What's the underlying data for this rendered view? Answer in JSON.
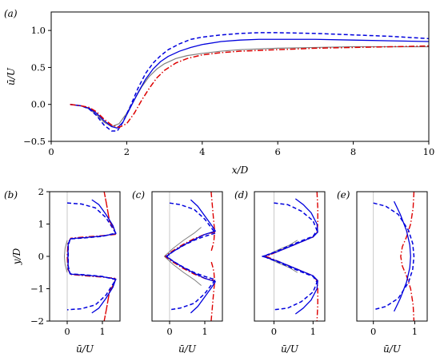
{
  "chart_data": [
    {
      "id": "a",
      "panel_label": "(a)",
      "type": "line",
      "xlabel": "x/D",
      "ylabel": "ū/U",
      "xlim": [
        0,
        10
      ],
      "ylim": [
        -0.5,
        1.25
      ],
      "xticks": [
        "0",
        "2",
        "4",
        "6",
        "8",
        "10"
      ],
      "yticks": [
        "−0.5",
        "0.0",
        "0.5",
        "1.0"
      ],
      "series": [
        {
          "color": "#808080",
          "dash": "solid",
          "width": 1.2,
          "x": [
            0.5,
            0.8,
            1.0,
            1.2,
            1.4,
            1.6,
            1.8,
            2.0,
            2.2,
            2.4,
            2.6,
            2.8,
            3.0,
            3.3,
            3.6,
            4.0,
            4.5,
            5.0,
            6.0,
            7.0,
            8.0,
            9.0,
            10.0
          ],
          "y": [
            0.0,
            -0.02,
            -0.06,
            -0.14,
            -0.24,
            -0.3,
            -0.26,
            -0.12,
            0.06,
            0.24,
            0.38,
            0.48,
            0.55,
            0.62,
            0.66,
            0.69,
            0.72,
            0.74,
            0.76,
            0.77,
            0.78,
            0.78,
            0.78
          ]
        },
        {
          "color": "#0000dd",
          "dash": "solid",
          "width": 1.3,
          "x": [
            0.5,
            0.8,
            1.0,
            1.2,
            1.4,
            1.6,
            1.75,
            1.9,
            2.1,
            2.3,
            2.5,
            2.7,
            2.9,
            3.1,
            3.4,
            3.7,
            4.0,
            4.5,
            5.0,
            5.5,
            6.0,
            7.0,
            8.0,
            9.0,
            10.0
          ],
          "y": [
            0.0,
            -0.02,
            -0.05,
            -0.12,
            -0.22,
            -0.3,
            -0.32,
            -0.24,
            -0.04,
            0.16,
            0.34,
            0.48,
            0.58,
            0.65,
            0.72,
            0.77,
            0.81,
            0.85,
            0.87,
            0.88,
            0.88,
            0.88,
            0.87,
            0.86,
            0.85
          ]
        },
        {
          "color": "#0000dd",
          "dash": "dashed",
          "width": 1.5,
          "x": [
            0.5,
            0.8,
            1.0,
            1.2,
            1.4,
            1.6,
            1.75,
            1.9,
            2.1,
            2.3,
            2.5,
            2.7,
            2.9,
            3.1,
            3.4,
            3.7,
            4.0,
            4.5,
            5.0,
            5.5,
            6.0,
            7.0,
            8.0,
            9.0,
            10.0
          ],
          "y": [
            0.0,
            -0.02,
            -0.06,
            -0.15,
            -0.28,
            -0.36,
            -0.36,
            -0.24,
            -0.02,
            0.22,
            0.42,
            0.56,
            0.66,
            0.74,
            0.82,
            0.88,
            0.91,
            0.94,
            0.96,
            0.97,
            0.97,
            0.96,
            0.94,
            0.92,
            0.89
          ]
        },
        {
          "color": "#dd0000",
          "dash": "dashdot",
          "width": 1.5,
          "x": [
            0.5,
            0.8,
            1.0,
            1.2,
            1.4,
            1.6,
            1.8,
            2.0,
            2.2,
            2.4,
            2.6,
            2.8,
            3.0,
            3.3,
            3.6,
            4.0,
            4.5,
            5.0,
            6.0,
            7.0,
            8.0,
            9.0,
            10.0
          ],
          "y": [
            0.0,
            -0.02,
            -0.04,
            -0.1,
            -0.2,
            -0.28,
            -0.31,
            -0.26,
            -0.12,
            0.06,
            0.22,
            0.36,
            0.46,
            0.56,
            0.62,
            0.67,
            0.7,
            0.72,
            0.74,
            0.76,
            0.77,
            0.78,
            0.79
          ]
        }
      ]
    },
    {
      "id": "b",
      "panel_label": "(b)",
      "type": "line",
      "xlabel": "ū/U",
      "ylabel": "y/D",
      "xlim": [
        -0.5,
        1.5
      ],
      "ylim": [
        -2,
        2
      ],
      "xticks": [
        {
          "v": 0,
          "t": "0"
        },
        {
          "v": 1,
          "t": "1"
        }
      ],
      "yticks": [
        "−2",
        "−1",
        "0",
        "1",
        "2"
      ],
      "zero_line_x": 0,
      "series": [
        {
          "color": "#808080",
          "dash": "solid",
          "width": 1.0,
          "x": [
            0.0,
            -0.06,
            -0.08,
            -0.06,
            0.0
          ],
          "y": [
            0.5,
            0.25,
            0.0,
            -0.25,
            -0.5
          ]
        },
        {
          "color": "#dd0000",
          "dash": "dashdot",
          "width": 1.4,
          "x": [
            1.05,
            1.12,
            1.2,
            1.3,
            1.38,
            1.3,
            1.2,
            1.12,
            1.05
          ],
          "y": [
            2.0,
            1.6,
            1.1,
            0.9,
            0.7,
            0.9,
            1.1,
            1.6,
            2.0
          ]
        },
        {
          "color": "#dd0000",
          "dash": "dashdot",
          "width": 1.4,
          "x": [
            1.05,
            1.12,
            1.2,
            1.3,
            1.38,
            1.3,
            1.2,
            1.12,
            1.05
          ],
          "y": [
            -2.0,
            -1.6,
            -1.1,
            -0.9,
            -0.7,
            -0.9,
            -1.1,
            -1.6,
            -2.0
          ]
        },
        {
          "color": "#dd0000",
          "dash": "dashdot",
          "width": 1.4,
          "x": [
            1.38,
            1.0,
            0.5,
            0.1,
            0.02,
            0.0,
            0.02,
            0.1,
            0.5,
            1.0,
            1.38
          ],
          "y": [
            0.68,
            0.64,
            0.6,
            0.56,
            0.4,
            0.0,
            -0.4,
            -0.56,
            -0.6,
            -0.64,
            -0.68
          ]
        },
        {
          "color": "#0000dd",
          "dash": "solid",
          "width": 1.3,
          "x": [
            0.7,
            0.9,
            1.1,
            1.3,
            1.38,
            1.0,
            0.5,
            0.1,
            0.03,
            0.02,
            0.03,
            0.1,
            0.5,
            1.0,
            1.38,
            1.3,
            1.1,
            0.9,
            0.7
          ],
          "y": [
            1.75,
            1.6,
            1.3,
            0.95,
            0.7,
            0.63,
            0.58,
            0.55,
            0.4,
            0.0,
            -0.4,
            -0.55,
            -0.58,
            -0.63,
            -0.7,
            -0.95,
            -1.3,
            -1.6,
            -1.75
          ]
        },
        {
          "color": "#0000dd",
          "dash": "dashed",
          "width": 1.5,
          "x": [
            0.0,
            0.4,
            0.8,
            1.1,
            1.38,
            1.0,
            0.5,
            0.08,
            0.03,
            0.03,
            0.08,
            0.5,
            1.0,
            1.38,
            1.1,
            0.8,
            0.4,
            0.0
          ],
          "y": [
            1.65,
            1.62,
            1.5,
            1.2,
            0.72,
            0.62,
            0.57,
            0.54,
            0.3,
            -0.3,
            -0.54,
            -0.57,
            -0.62,
            -0.72,
            -1.2,
            -1.5,
            -1.62,
            -1.65
          ]
        }
      ]
    },
    {
      "id": "c",
      "panel_label": "(c)",
      "type": "line",
      "xlabel": "ū/U",
      "ylabel": "",
      "xlim": [
        -0.5,
        1.5
      ],
      "ylim": [
        -2,
        2
      ],
      "xticks": [
        {
          "v": 0,
          "t": "0"
        },
        {
          "v": 1,
          "t": "1"
        }
      ],
      "yticks": [],
      "zero_line_x": 0,
      "series": [
        {
          "color": "#808080",
          "dash": "solid",
          "width": 1.0,
          "x": [
            0.9,
            0.7,
            0.4,
            0.1,
            -0.05,
            -0.15,
            -0.05,
            0.1,
            0.4,
            0.7,
            0.9
          ],
          "y": [
            0.9,
            0.72,
            0.5,
            0.25,
            0.1,
            0.0,
            -0.1,
            -0.25,
            -0.5,
            -0.72,
            -0.9
          ]
        },
        {
          "color": "#dd0000",
          "dash": "dashdot",
          "width": 1.4,
          "x": [
            1.18,
            1.22,
            1.26,
            1.28,
            1.26,
            1.22,
            1.18
          ],
          "y": [
            2.0,
            1.5,
            1.0,
            0.8,
            0.5,
            0.3,
            0.15
          ]
        },
        {
          "color": "#dd0000",
          "dash": "dashdot",
          "width": 1.4,
          "x": [
            1.18,
            1.22,
            1.26,
            1.28,
            1.26,
            1.22,
            1.18
          ],
          "y": [
            -2.0,
            -1.5,
            -1.0,
            -0.8,
            -0.5,
            -0.3,
            -0.15
          ]
        },
        {
          "color": "#dd0000",
          "dash": "dashdot",
          "width": 1.4,
          "x": [
            1.28,
            1.0,
            0.7,
            0.4,
            0.1,
            -0.05,
            -0.12,
            -0.05,
            0.1,
            0.4,
            0.7,
            1.0,
            1.28
          ],
          "y": [
            0.75,
            0.68,
            0.55,
            0.38,
            0.18,
            0.06,
            0.0,
            -0.06,
            -0.18,
            -0.38,
            -0.55,
            -0.68,
            -0.75
          ]
        },
        {
          "color": "#0000dd",
          "dash": "solid",
          "width": 1.3,
          "x": [
            0.6,
            0.8,
            1.0,
            1.2,
            1.3,
            1.0,
            0.7,
            0.4,
            0.1,
            -0.1,
            0.1,
            0.4,
            0.7,
            1.0,
            1.3,
            1.2,
            1.0,
            0.8,
            0.6
          ],
          "y": [
            1.75,
            1.55,
            1.25,
            0.95,
            0.78,
            0.68,
            0.52,
            0.35,
            0.15,
            0.0,
            -0.15,
            -0.35,
            -0.52,
            -0.68,
            -0.78,
            -0.95,
            -1.25,
            -1.55,
            -1.75
          ]
        },
        {
          "color": "#0000dd",
          "dash": "dashed",
          "width": 1.5,
          "x": [
            0.0,
            0.3,
            0.7,
            1.0,
            1.3,
            1.0,
            0.7,
            0.4,
            0.1,
            -0.08,
            0.1,
            0.4,
            0.7,
            1.0,
            1.3,
            1.0,
            0.7,
            0.3,
            0.0
          ],
          "y": [
            1.65,
            1.6,
            1.45,
            1.15,
            0.72,
            0.62,
            0.5,
            0.34,
            0.15,
            0.0,
            -0.15,
            -0.34,
            -0.5,
            -0.62,
            -0.72,
            -1.15,
            -1.45,
            -1.6,
            -1.65
          ]
        }
      ]
    },
    {
      "id": "d",
      "panel_label": "(d)",
      "type": "line",
      "xlabel": "ū/U",
      "ylabel": "",
      "xlim": [
        -0.5,
        1.3
      ],
      "ylim": [
        -2,
        2
      ],
      "xticks": [
        {
          "v": 0,
          "t": "0"
        },
        {
          "v": 1,
          "t": "1"
        }
      ],
      "yticks": [],
      "zero_line_x": 0,
      "series": [
        {
          "color": "#808080",
          "dash": "solid",
          "width": 1.0,
          "x": [
            0.6,
            0.4,
            0.1,
            -0.1,
            -0.25,
            -0.1,
            0.1,
            0.4,
            0.6
          ],
          "y": [
            0.5,
            0.35,
            0.2,
            0.08,
            0.0,
            -0.08,
            -0.2,
            -0.35,
            -0.5
          ]
        },
        {
          "color": "#dd0000",
          "dash": "dashdot",
          "width": 1.4,
          "x": [
            1.1,
            1.12,
            1.12,
            1.1,
            1.0,
            0.7,
            0.4,
            0.1,
            -0.1,
            -0.2,
            -0.1,
            0.1,
            0.4,
            0.7,
            1.0,
            1.1,
            1.12,
            1.12,
            1.1
          ],
          "y": [
            2.0,
            1.5,
            1.0,
            0.75,
            0.6,
            0.45,
            0.3,
            0.15,
            0.05,
            0.0,
            -0.05,
            -0.15,
            -0.3,
            -0.45,
            -0.6,
            -0.75,
            -1.0,
            -1.5,
            -2.0
          ]
        },
        {
          "color": "#0000dd",
          "dash": "solid",
          "width": 1.3,
          "x": [
            0.55,
            0.75,
            0.95,
            1.1,
            1.12,
            1.0,
            0.7,
            0.4,
            0.1,
            -0.15,
            -0.3,
            -0.15,
            0.1,
            0.4,
            0.7,
            1.0,
            1.12,
            1.1,
            0.95,
            0.75,
            0.55
          ],
          "y": [
            1.78,
            1.6,
            1.35,
            1.0,
            0.75,
            0.6,
            0.45,
            0.3,
            0.15,
            0.05,
            0.0,
            -0.05,
            -0.15,
            -0.3,
            -0.45,
            -0.6,
            -0.75,
            -1.0,
            -1.35,
            -1.6,
            -1.78
          ]
        },
        {
          "color": "#0000dd",
          "dash": "dashed",
          "width": 1.5,
          "x": [
            0.0,
            0.35,
            0.7,
            1.0,
            1.1,
            1.0,
            0.7,
            0.4,
            0.1,
            -0.15,
            -0.25,
            -0.15,
            0.1,
            0.4,
            0.7,
            1.0,
            1.1,
            1.0,
            0.7,
            0.35,
            0.0
          ],
          "y": [
            1.65,
            1.6,
            1.4,
            1.1,
            0.8,
            0.62,
            0.48,
            0.33,
            0.17,
            0.06,
            0.0,
            -0.06,
            -0.17,
            -0.33,
            -0.48,
            -0.62,
            -0.8,
            -1.1,
            -1.4,
            -1.6,
            -1.65
          ]
        }
      ]
    },
    {
      "id": "e",
      "panel_label": "(e)",
      "type": "line",
      "xlabel": "ū/U",
      "ylabel": "",
      "xlim": [
        -0.4,
        1.3
      ],
      "ylim": [
        -2,
        2
      ],
      "xticks": [
        {
          "v": 0,
          "t": "0"
        },
        {
          "v": 1,
          "t": "1"
        }
      ],
      "yticks": [],
      "zero_line_x": 0,
      "series": [
        {
          "color": "#dd0000",
          "dash": "dashdot",
          "width": 1.4,
          "x": [
            0.98,
            0.96,
            0.9,
            0.8,
            0.7,
            0.66,
            0.7,
            0.8,
            0.9,
            0.96,
            0.98
          ],
          "y": [
            2.0,
            1.5,
            1.0,
            0.6,
            0.3,
            0.0,
            -0.3,
            -0.6,
            -1.0,
            -1.5,
            -2.0
          ]
        },
        {
          "color": "#0000dd",
          "dash": "solid",
          "width": 1.3,
          "x": [
            0.5,
            0.65,
            0.8,
            0.88,
            0.9,
            0.88,
            0.8,
            0.65,
            0.5
          ],
          "y": [
            1.7,
            1.3,
            0.8,
            0.35,
            0.0,
            -0.35,
            -0.8,
            -1.3,
            -1.7
          ]
        },
        {
          "color": "#0000dd",
          "dash": "dashed",
          "width": 1.5,
          "x": [
            0.0,
            0.3,
            0.6,
            0.85,
            0.95,
            0.98,
            0.95,
            0.85,
            0.6,
            0.3,
            0.0
          ],
          "y": [
            1.65,
            1.55,
            1.3,
            0.8,
            0.4,
            0.0,
            -0.4,
            -0.8,
            -1.3,
            -1.55,
            -1.65
          ]
        }
      ]
    }
  ]
}
